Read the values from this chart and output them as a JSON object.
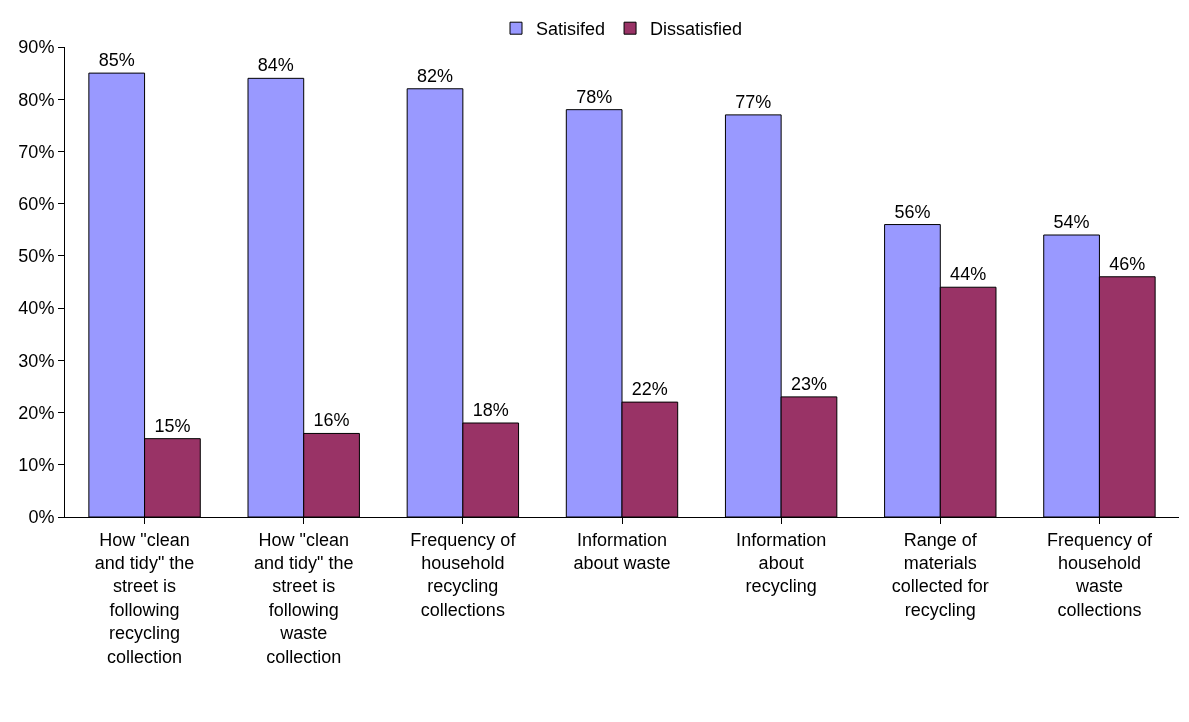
{
  "chart_data": {
    "type": "bar",
    "categories": [
      "How \"clean and tidy\" the street is following recycling collection",
      "How \"clean and tidy\" the street is following waste collection",
      "Frequency of household recycling collections",
      "Information about waste",
      "Information about recycling",
      "Range of materials collected for recycling",
      "Frequency of household waste collections"
    ],
    "series": [
      {
        "name": "Satisifed",
        "color": "#9999ff",
        "values": [
          85,
          84,
          82,
          78,
          77,
          56,
          54
        ],
        "value_labels": [
          "85%",
          "84%",
          "82%",
          "78%",
          "77%",
          "56%",
          "54%"
        ]
      },
      {
        "name": "Dissatisfied",
        "color": "#993366",
        "values": [
          15,
          16,
          18,
          22,
          23,
          44,
          46
        ],
        "value_labels": [
          "15%",
          "16%",
          "18%",
          "22%",
          "23%",
          "44%",
          "46%"
        ]
      }
    ],
    "ylim": [
      0,
      90
    ],
    "yticks": [
      {
        "value": 0,
        "label": "0%"
      },
      {
        "value": 10,
        "label": "10%"
      },
      {
        "value": 20,
        "label": "20%"
      },
      {
        "value": 30,
        "label": "30%"
      },
      {
        "value": 40,
        "label": "40%"
      },
      {
        "value": 50,
        "label": "50%"
      },
      {
        "value": 60,
        "label": "60%"
      },
      {
        "value": 70,
        "label": "70%"
      },
      {
        "value": 80,
        "label": "80%"
      },
      {
        "value": 90,
        "label": "90%"
      }
    ],
    "grid": false,
    "legend": "top"
  }
}
